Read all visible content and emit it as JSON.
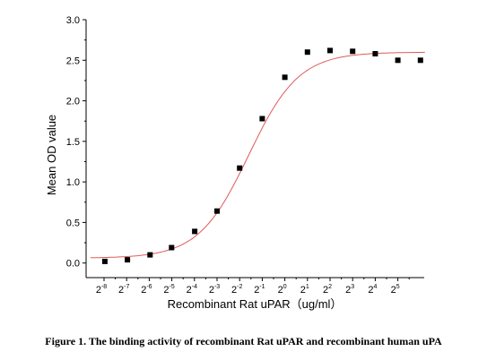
{
  "chart_data": {
    "type": "scatter",
    "title": "",
    "xlabel": "Recombinant  Rat uPAR（ug/ml）",
    "ylabel": "Mean OD value",
    "x_scale": "log2",
    "x_tick_base": "2",
    "x_tick_exponents": [
      "-8",
      "-7",
      "-6",
      "-5",
      "-4",
      "-3",
      "-2",
      "-1",
      "0",
      "1",
      "2",
      "3",
      "4",
      "5"
    ],
    "ylim": [
      -0.18,
      3.0
    ],
    "y_ticks": [
      "0.0",
      "0.5",
      "1.0",
      "1.5",
      "2.0",
      "2.5",
      "3.0"
    ],
    "grid": false,
    "legend": "none",
    "colors": {
      "points": "#000000",
      "fit": "#e05a5a",
      "axis": "#000000"
    },
    "series": [
      {
        "values": [
          {
            "x": 0.004,
            "y": 0.02
          },
          {
            "x": 0.008,
            "y": 0.04
          },
          {
            "x": 0.016,
            "y": 0.1
          },
          {
            "x": 0.031,
            "y": 0.19
          },
          {
            "x": 0.063,
            "y": 0.39
          },
          {
            "x": 0.125,
            "y": 0.64
          },
          {
            "x": 0.25,
            "y": 1.17
          },
          {
            "x": 0.5,
            "y": 1.78
          },
          {
            "x": 1,
            "y": 2.29
          },
          {
            "x": 2,
            "y": 2.6
          },
          {
            "x": 4,
            "y": 2.62
          },
          {
            "x": 8,
            "y": 2.61
          },
          {
            "x": 16,
            "y": 2.58
          },
          {
            "x": 32,
            "y": 2.5
          },
          {
            "x": 64,
            "y": 2.5
          }
        ]
      }
    ],
    "fit_curve": {
      "model": "4-parameter logistic",
      "bottom": 0.06,
      "top": 2.6,
      "ec50": 0.33,
      "hill": 1.3
    }
  },
  "caption": "Figure 1. The binding activity of recombinant Rat uPAR and recombinant human uPA"
}
